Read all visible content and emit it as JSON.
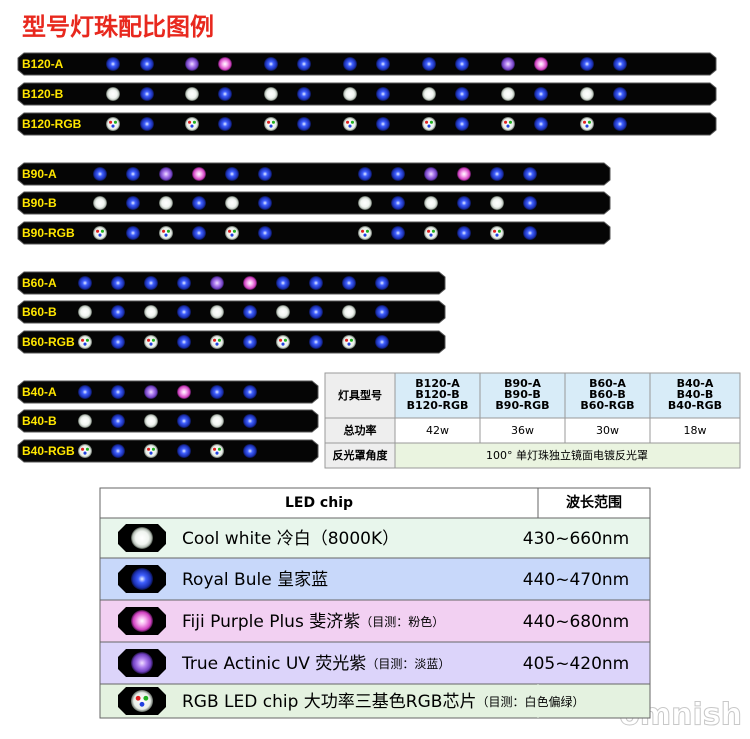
{
  "title": "型号灯珠配比图例",
  "bars": [
    {
      "label": "B120-A"
    },
    {
      "label": "B120-B"
    },
    {
      "label": "B120-RGB"
    },
    {
      "label": "B90-A"
    },
    {
      "label": "B90-B"
    },
    {
      "label": "B90-RGB"
    },
    {
      "label": "B60-A"
    },
    {
      "label": "B60-B"
    },
    {
      "label": "B60-RGB"
    },
    {
      "label": "B40-A"
    },
    {
      "label": "B40-B"
    },
    {
      "label": "B40-RGB"
    }
  ],
  "spec_table": {
    "row_header": "灯具型号",
    "models": [
      [
        "B120-A",
        "B120-B",
        "B120-RGB"
      ],
      [
        "B90-A",
        "B90-B",
        "B90-RGB"
      ],
      [
        "B60-A",
        "B60-B",
        "B60-RGB"
      ],
      [
        "B40-A",
        "B40-B",
        "B40-RGB"
      ]
    ],
    "power": {
      "label": "总功率",
      "values": [
        "42w",
        "36w",
        "30w",
        "18w"
      ]
    },
    "reflector": {
      "label": "反光罩角度",
      "text": "100°  单灯珠独立镜面电镀反光罩"
    }
  },
  "chip_table": {
    "header": [
      "LED chip",
      "波长范围"
    ],
    "rows": [
      {
        "name": "Cool white 冷白（8000K）",
        "range": "430~660nm"
      },
      {
        "name": "Royal Bule 皇家蓝",
        "range": "440~470nm"
      },
      {
        "name": "Fiji Purple Plus 斐济紫",
        "note": "（目测：粉色）",
        "range": "440~680nm"
      },
      {
        "name": "True Actinic  UV 荧光紫",
        "note": "（目测：淡蓝）",
        "range": "405~420nm"
      },
      {
        "name": "RGB LED chip  大功率三基色RGB芯片",
        "note": "（目测：白色偏绿）"
      }
    ]
  },
  "watermark": "omnish"
}
